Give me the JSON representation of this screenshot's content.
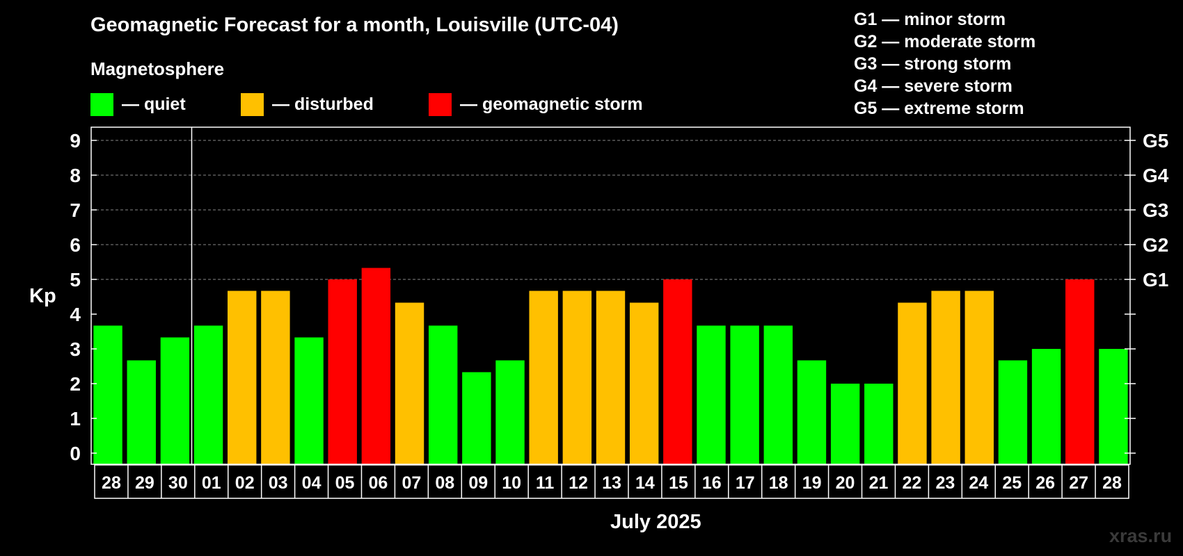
{
  "title": "Geomagnetic Forecast for a month, Louisville (UTC-04)",
  "magnetosphere_label": "Magnetosphere",
  "legend": [
    {
      "label": "— quiet",
      "color": "#00ff00"
    },
    {
      "label": "— disturbed",
      "color": "#ffc000"
    },
    {
      "label": "— geomagnetic storm",
      "color": "#ff0000"
    }
  ],
  "g_scale": [
    "G1 — minor storm",
    "G2 — moderate storm",
    "G3 — strong storm",
    "G4 — severe storm",
    "G5 — extreme storm"
  ],
  "watermark": "xras.ru",
  "chart_data": {
    "type": "bar",
    "ylabel": "Kp",
    "xlabel": "July 2025",
    "ylim": [
      0,
      9.3
    ],
    "y_ticks": [
      "0",
      "1",
      "2",
      "3",
      "4",
      "5",
      "6",
      "7",
      "8",
      "9"
    ],
    "right_ticks": [
      {
        "value": 5,
        "label": "G1"
      },
      {
        "value": 6,
        "label": "G2"
      },
      {
        "value": 7,
        "label": "G3"
      },
      {
        "value": 8,
        "label": "G4"
      },
      {
        "value": 9,
        "label": "G5"
      }
    ],
    "grid": "dashed horizontal at integer Kp 5–9",
    "month_divider_after_index": 2,
    "categories": [
      "28",
      "29",
      "30",
      "01",
      "02",
      "03",
      "04",
      "05",
      "06",
      "07",
      "08",
      "09",
      "10",
      "11",
      "12",
      "13",
      "14",
      "15",
      "16",
      "17",
      "18",
      "19",
      "20",
      "21",
      "22",
      "23",
      "24",
      "25",
      "26",
      "27",
      "28"
    ],
    "values": [
      3.67,
      2.67,
      3.33,
      3.67,
      4.67,
      4.67,
      3.33,
      5,
      5.33,
      4.33,
      3.67,
      2.33,
      2.67,
      4.67,
      4.67,
      4.67,
      4.33,
      5,
      3.67,
      3.67,
      3.67,
      2.67,
      2,
      2,
      4.33,
      4.67,
      4.67,
      2.67,
      3,
      5,
      3
    ],
    "bar_colors": [
      "#00ff00",
      "#00ff00",
      "#00ff00",
      "#00ff00",
      "#ffc000",
      "#ffc000",
      "#00ff00",
      "#ff0000",
      "#ff0000",
      "#ffc000",
      "#00ff00",
      "#00ff00",
      "#00ff00",
      "#ffc000",
      "#ffc000",
      "#ffc000",
      "#ffc000",
      "#ff0000",
      "#00ff00",
      "#00ff00",
      "#00ff00",
      "#00ff00",
      "#00ff00",
      "#00ff00",
      "#ffc000",
      "#ffc000",
      "#ffc000",
      "#00ff00",
      "#00ff00",
      "#ff0000",
      "#00ff00"
    ]
  }
}
